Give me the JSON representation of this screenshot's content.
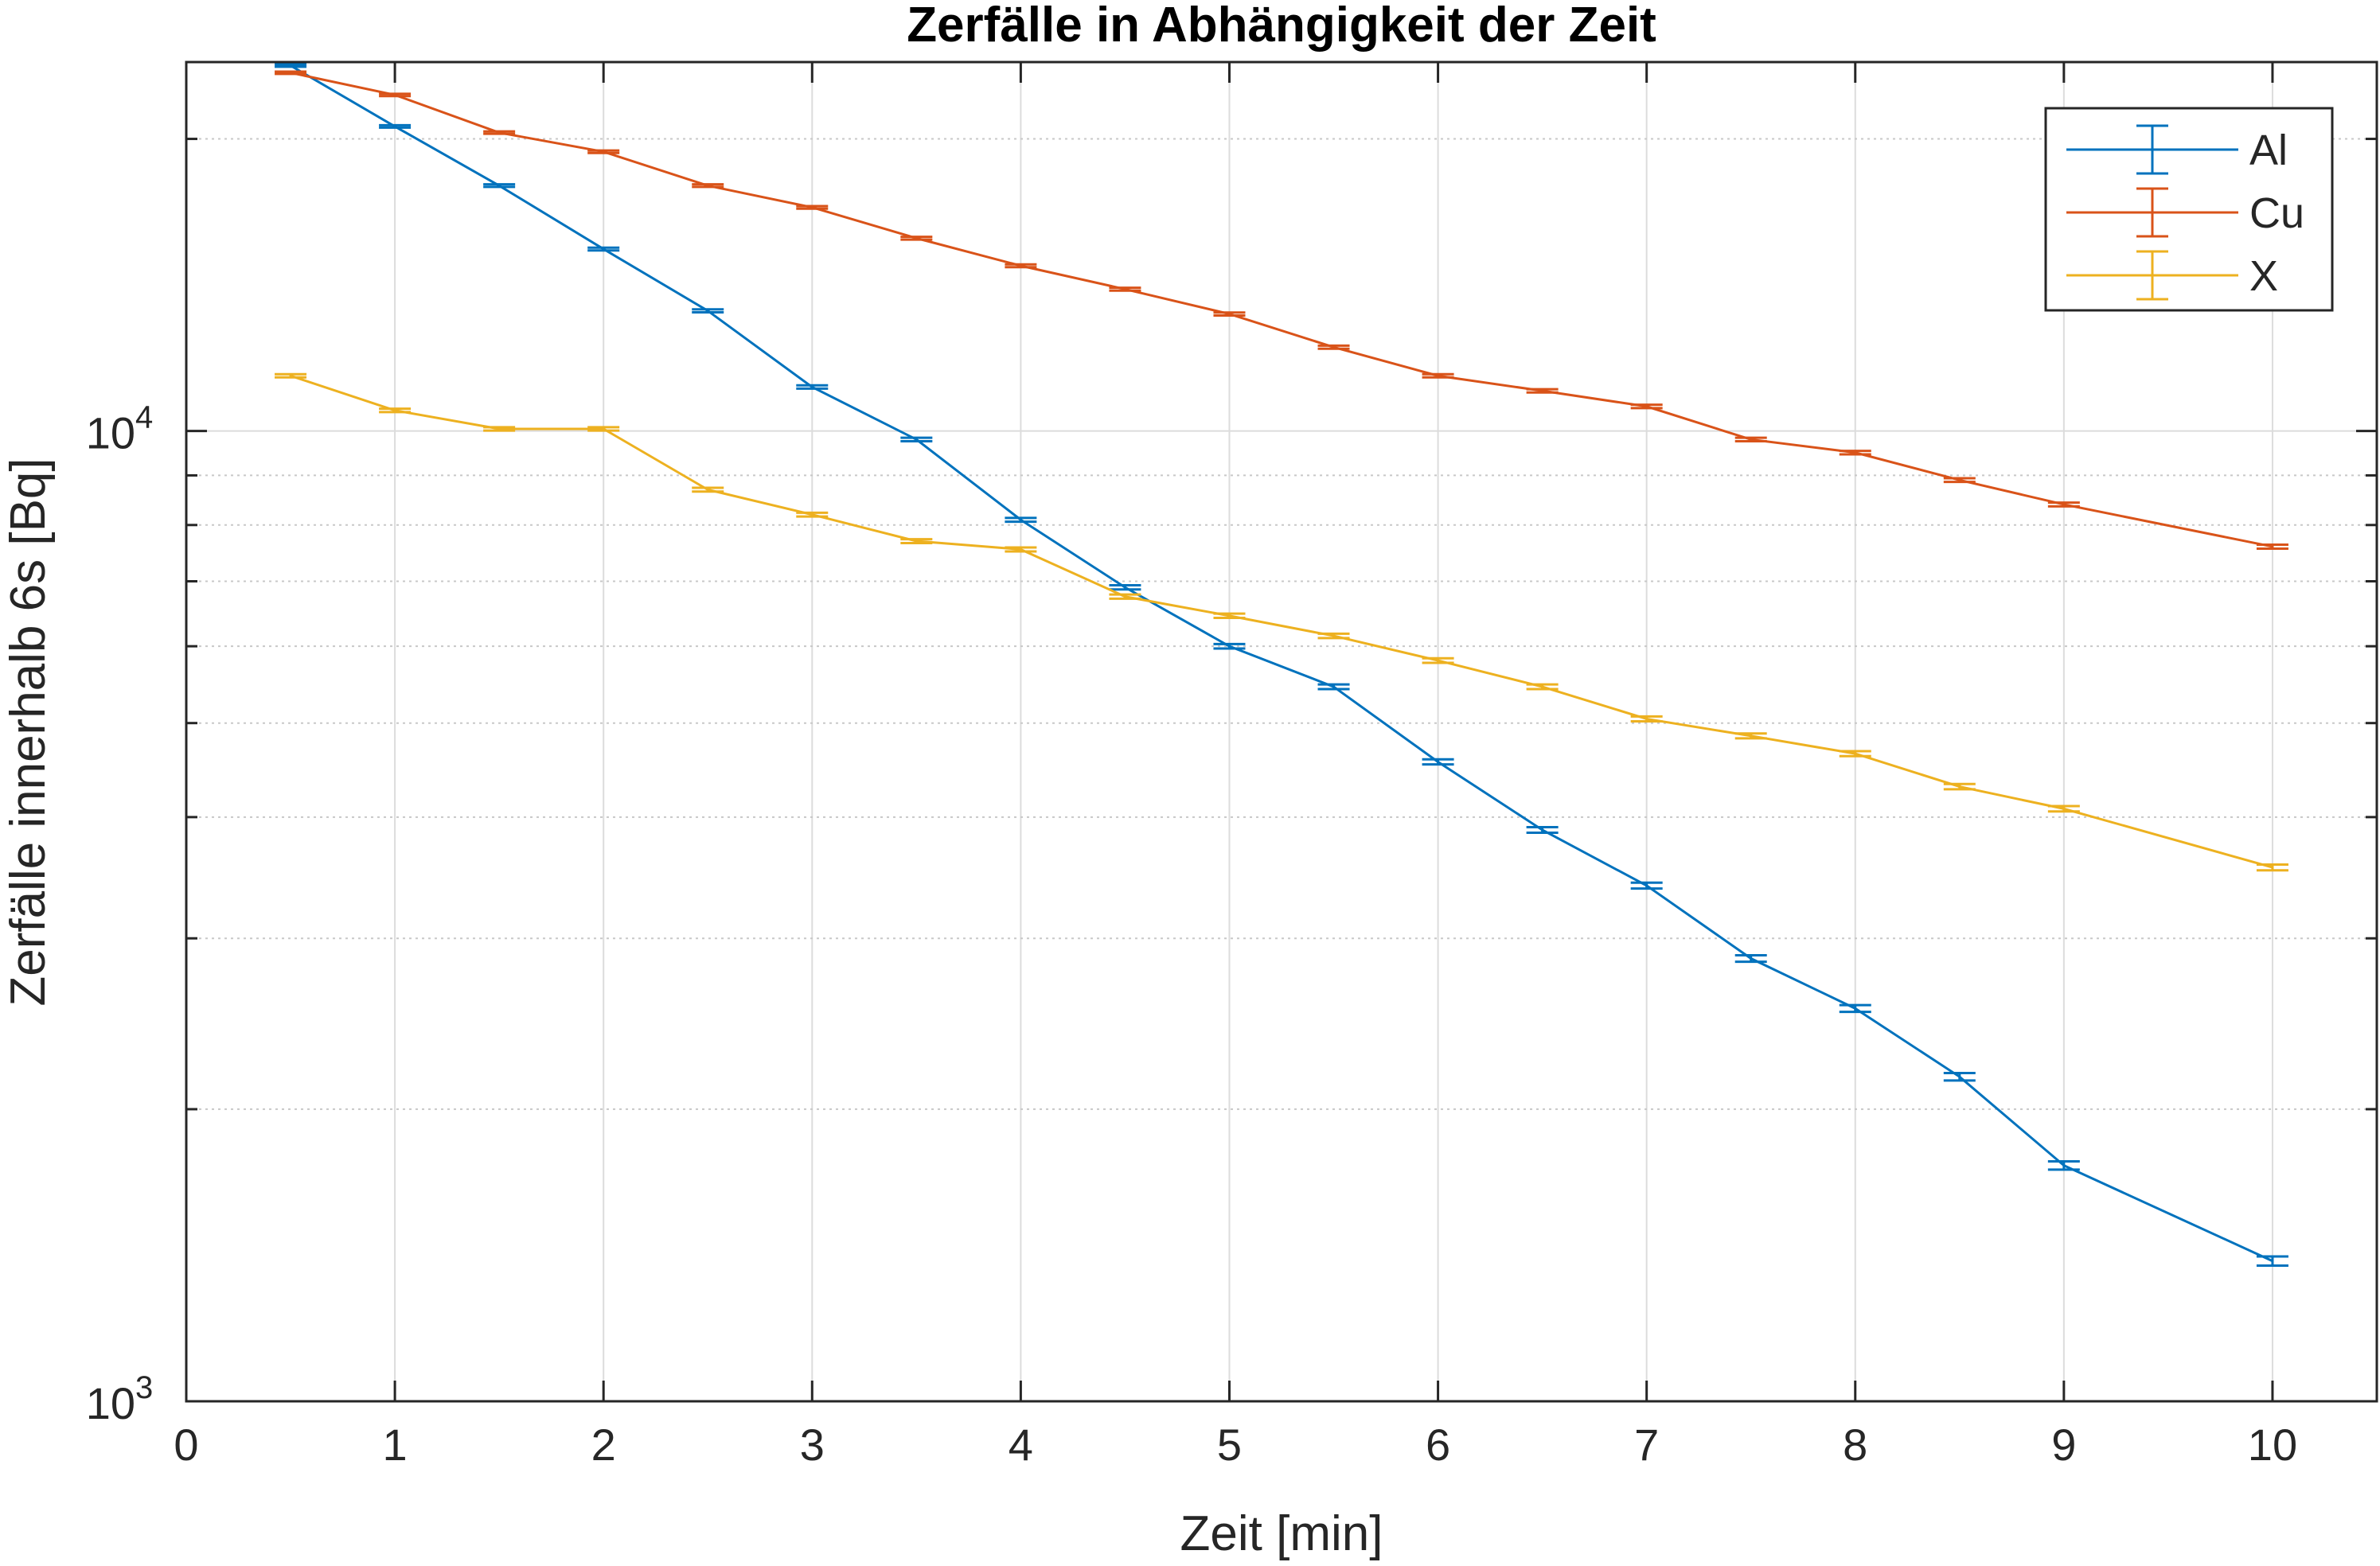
{
  "chart_data": {
    "type": "line",
    "title": "Zerfälle in Abhängigkeit der Zeit",
    "xlabel": "Zeit [min]",
    "ylabel": "Zerfälle innerhalb 6s [Bq]",
    "xlim": [
      0,
      10.5
    ],
    "ylim": [
      1000,
      24000
    ],
    "yscale": "log",
    "x_ticks": [
      0,
      1,
      2,
      3,
      4,
      5,
      6,
      7,
      8,
      9,
      10
    ],
    "x_tick_labels": [
      "0",
      "1",
      "2",
      "3",
      "4",
      "5",
      "6",
      "7",
      "8",
      "9",
      "10"
    ],
    "y_ticks": [
      1000,
      10000
    ],
    "y_tick_labels": [
      {
        "base": "10",
        "exp": "3"
      },
      {
        "base": "10",
        "exp": "4"
      }
    ],
    "grid": true,
    "legend_position": "top-right",
    "x": [
      0.5,
      1,
      1.5,
      2,
      2.5,
      3,
      3.5,
      4,
      4.5,
      5,
      5.5,
      6,
      6.5,
      7,
      7.5,
      8,
      8.5,
      9,
      10
    ],
    "series": [
      {
        "name": "Al",
        "color": "#0072BD",
        "x": [
          0.5,
          1,
          1.5,
          2,
          2.5,
          3,
          3.5,
          4,
          4.5,
          5,
          5.5,
          6,
          6.5,
          7,
          7.5,
          8,
          8.5,
          9,
          10
        ],
        "values": [
          23800,
          20600,
          17900,
          15400,
          13300,
          11100,
          9800,
          8100,
          6900,
          6000,
          5450,
          4560,
          3880,
          3400,
          2860,
          2540,
          2160,
          1750,
          1395
        ]
      },
      {
        "name": "Cu",
        "color": "#D95319",
        "x": [
          0.5,
          1,
          1.5,
          2,
          2.5,
          3,
          3.5,
          4,
          4.5,
          5,
          5.5,
          6,
          6.5,
          7,
          7.5,
          8,
          8.5,
          9,
          10
        ],
        "values": [
          23400,
          22200,
          20300,
          19400,
          17900,
          17000,
          15800,
          14800,
          14000,
          13200,
          12200,
          11400,
          11000,
          10600,
          9800,
          9500,
          8900,
          8400,
          7600
        ]
      },
      {
        "name": "X",
        "color": "#EDB120",
        "x": [
          0.5,
          1,
          1.5,
          2,
          2.5,
          3,
          3.5,
          4,
          4.5,
          5,
          5.5,
          6,
          6.5,
          7,
          7.5,
          8,
          8.5,
          9,
          10
        ],
        "values": [
          11400,
          10500,
          10050,
          10050,
          8700,
          8200,
          7700,
          7550,
          6750,
          6450,
          6150,
          5800,
          5450,
          5050,
          4850,
          4650,
          4300,
          4080,
          3550
        ]
      }
    ]
  }
}
